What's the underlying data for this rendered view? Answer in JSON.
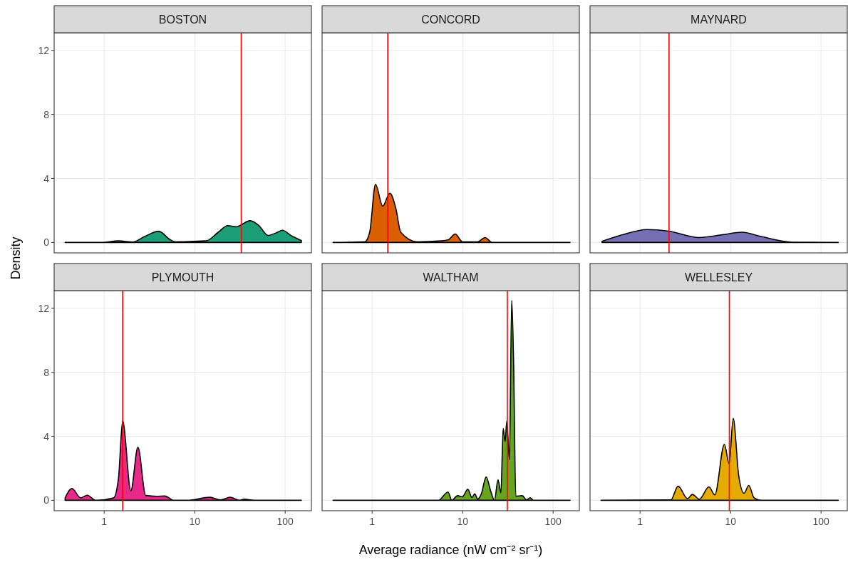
{
  "chart_data": [
    {
      "type": "area",
      "title": "BOSTON",
      "ylabel": "Density",
      "x": [
        0.37,
        0.94,
        1.44,
        2.07,
        2.8,
        4.0,
        5.4,
        6.1,
        13.4,
        18.2,
        23.2,
        28.6,
        41.1,
        50.8,
        64.7,
        82.4,
        93,
        118,
        151
      ],
      "values": [
        0,
        0,
        0.1,
        0.03,
        0.37,
        0.7,
        0.16,
        0.04,
        0.1,
        0.64,
        1.05,
        0.98,
        1.36,
        1.08,
        0.44,
        0.64,
        0.76,
        0.41,
        0.12
      ],
      "color": "#1b9e77",
      "xlim": [
        0.28,
        195
      ],
      "xticks": [
        1,
        10,
        100
      ],
      "ylim": [
        -0.65,
        13.1
      ],
      "yticks": [
        0,
        4,
        8,
        12
      ],
      "log": "x",
      "grid": true,
      "tick_labels": "y",
      "ref_lines": [
        {
          "axis": "x",
          "value": 32.7,
          "color": "#ff0000"
        }
      ]
    },
    {
      "type": "area",
      "title": "CONCORD",
      "x": [
        0.37,
        0.83,
        0.94,
        1.09,
        1.31,
        1.57,
        1.83,
        2.07,
        3.15,
        5.8,
        6.9,
        8.3,
        9.95,
        14.7,
        17.7,
        21.2,
        154
      ],
      "values": [
        0,
        0.04,
        0.64,
        3.63,
        2.27,
        3.08,
        2.12,
        0.64,
        0.04,
        0.1,
        0.16,
        0.53,
        0.04,
        0.04,
        0.31,
        0,
        0
      ],
      "color": "#d95f02",
      "xlim": [
        0.28,
        195
      ],
      "xticks": [
        1,
        10,
        100
      ],
      "ylim": [
        -0.65,
        13.1
      ],
      "yticks": [
        0,
        4,
        8,
        12
      ],
      "log": "x",
      "grid": true,
      "tick_labels": false,
      "ref_lines": [
        {
          "axis": "x",
          "value": 1.49,
          "color": "#ff0000"
        }
      ]
    },
    {
      "type": "area",
      "title": "MAYNARD",
      "x": [
        0.38,
        0.62,
        1.2,
        2.07,
        4.5,
        8.3,
        13.4,
        21.8,
        47.9,
        155
      ],
      "values": [
        0.07,
        0.46,
        0.81,
        0.71,
        0.31,
        0.49,
        0.64,
        0.37,
        0.02,
        0
      ],
      "color": "#7570b3",
      "xlim": [
        0.28,
        195
      ],
      "xticks": [
        1,
        10,
        100
      ],
      "ylim": [
        -0.65,
        13.1
      ],
      "yticks": [
        0,
        4,
        8,
        12
      ],
      "log": "x",
      "grid": true,
      "tick_labels": false,
      "ref_lines": [
        {
          "axis": "x",
          "value": 2.09,
          "color": "#ff0000"
        }
      ]
    },
    {
      "type": "area",
      "title": "PLYMOUTH",
      "x": [
        0.37,
        0.44,
        0.55,
        0.65,
        0.81,
        1.27,
        1.44,
        1.6,
        1.97,
        2.36,
        2.88,
        3.78,
        4.67,
        5.9,
        8.3,
        14.7,
        19.3,
        24.6,
        31.3,
        35.4,
        45.1,
        151
      ],
      "values": [
        0.15,
        0.74,
        0.15,
        0.32,
        0,
        0.15,
        1.4,
        4.97,
        0.59,
        3.32,
        0.3,
        0.25,
        0.27,
        0,
        0,
        0.19,
        0.03,
        0.19,
        0,
        0.07,
        0,
        0
      ],
      "color": "#e7298a",
      "xlim": [
        0.28,
        195
      ],
      "xticks": [
        1,
        10,
        100
      ],
      "ylim": [
        -0.65,
        13.1
      ],
      "yticks": [
        0,
        4,
        8,
        12
      ],
      "log": "x",
      "grid": true,
      "ref_lines": [
        {
          "axis": "x",
          "value": 1.6,
          "color": "#ff0000"
        }
      ]
    },
    {
      "type": "area",
      "title": "WALTHAM",
      "xlabel": "Average radiance (nW cm⁻² sr⁻¹)",
      "x": [
        0.37,
        3.15,
        5.4,
        6.9,
        7.6,
        8.8,
        9.95,
        11.4,
        12.7,
        13.6,
        14.7,
        16.1,
        18.2,
        20.5,
        22.5,
        24.6,
        26.5,
        28.1,
        29.5,
        30.8,
        32.9,
        34.9,
        36.6,
        38.7,
        45.6,
        50.8,
        55.6,
        60.9,
        154
      ],
      "values": [
        0,
        0,
        0,
        0.52,
        0,
        0.29,
        0.22,
        0.69,
        0.18,
        0.4,
        0.07,
        0.4,
        1.46,
        0.55,
        0,
        1.28,
        0.47,
        4.5,
        3.67,
        4.97,
        2.54,
        12.49,
        8.66,
        0.25,
        0.29,
        0.03,
        0.16,
        0,
        0
      ],
      "color": "#66a61e",
      "xlim": [
        0.28,
        195
      ],
      "xticks": [
        1,
        10,
        100
      ],
      "ylim": [
        -0.65,
        13.1
      ],
      "yticks": [
        0,
        4,
        8,
        12
      ],
      "log": "x",
      "grid": true,
      "tick_labels": "x",
      "ref_lines": [
        {
          "axis": "x",
          "value": 31.2,
          "color": "#ff0000"
        }
      ]
    },
    {
      "type": "area",
      "title": "WELLESLEY",
      "x": [
        0.37,
        2.19,
        2.63,
        3.35,
        3.78,
        4.53,
        5.77,
        6.7,
        8.55,
        9.64,
        10.7,
        12.3,
        14.1,
        15.9,
        18.2,
        21.8,
        155
      ],
      "values": [
        0,
        0.03,
        0.88,
        0.1,
        0.37,
        0.07,
        0.84,
        0.34,
        3.5,
        2.29,
        5.12,
        1.55,
        0.44,
        0.93,
        0.15,
        0,
        0
      ],
      "color": "#e6ab02",
      "xlim": [
        0.28,
        195
      ],
      "xticks": [
        1,
        10,
        100
      ],
      "ylim": [
        -0.65,
        13.1
      ],
      "yticks": [
        0,
        4,
        8,
        12
      ],
      "log": "x",
      "grid": true,
      "tick_labels": "x",
      "ref_lines": [
        {
          "axis": "x",
          "value": 9.7,
          "color": "#ff0000"
        }
      ]
    }
  ]
}
